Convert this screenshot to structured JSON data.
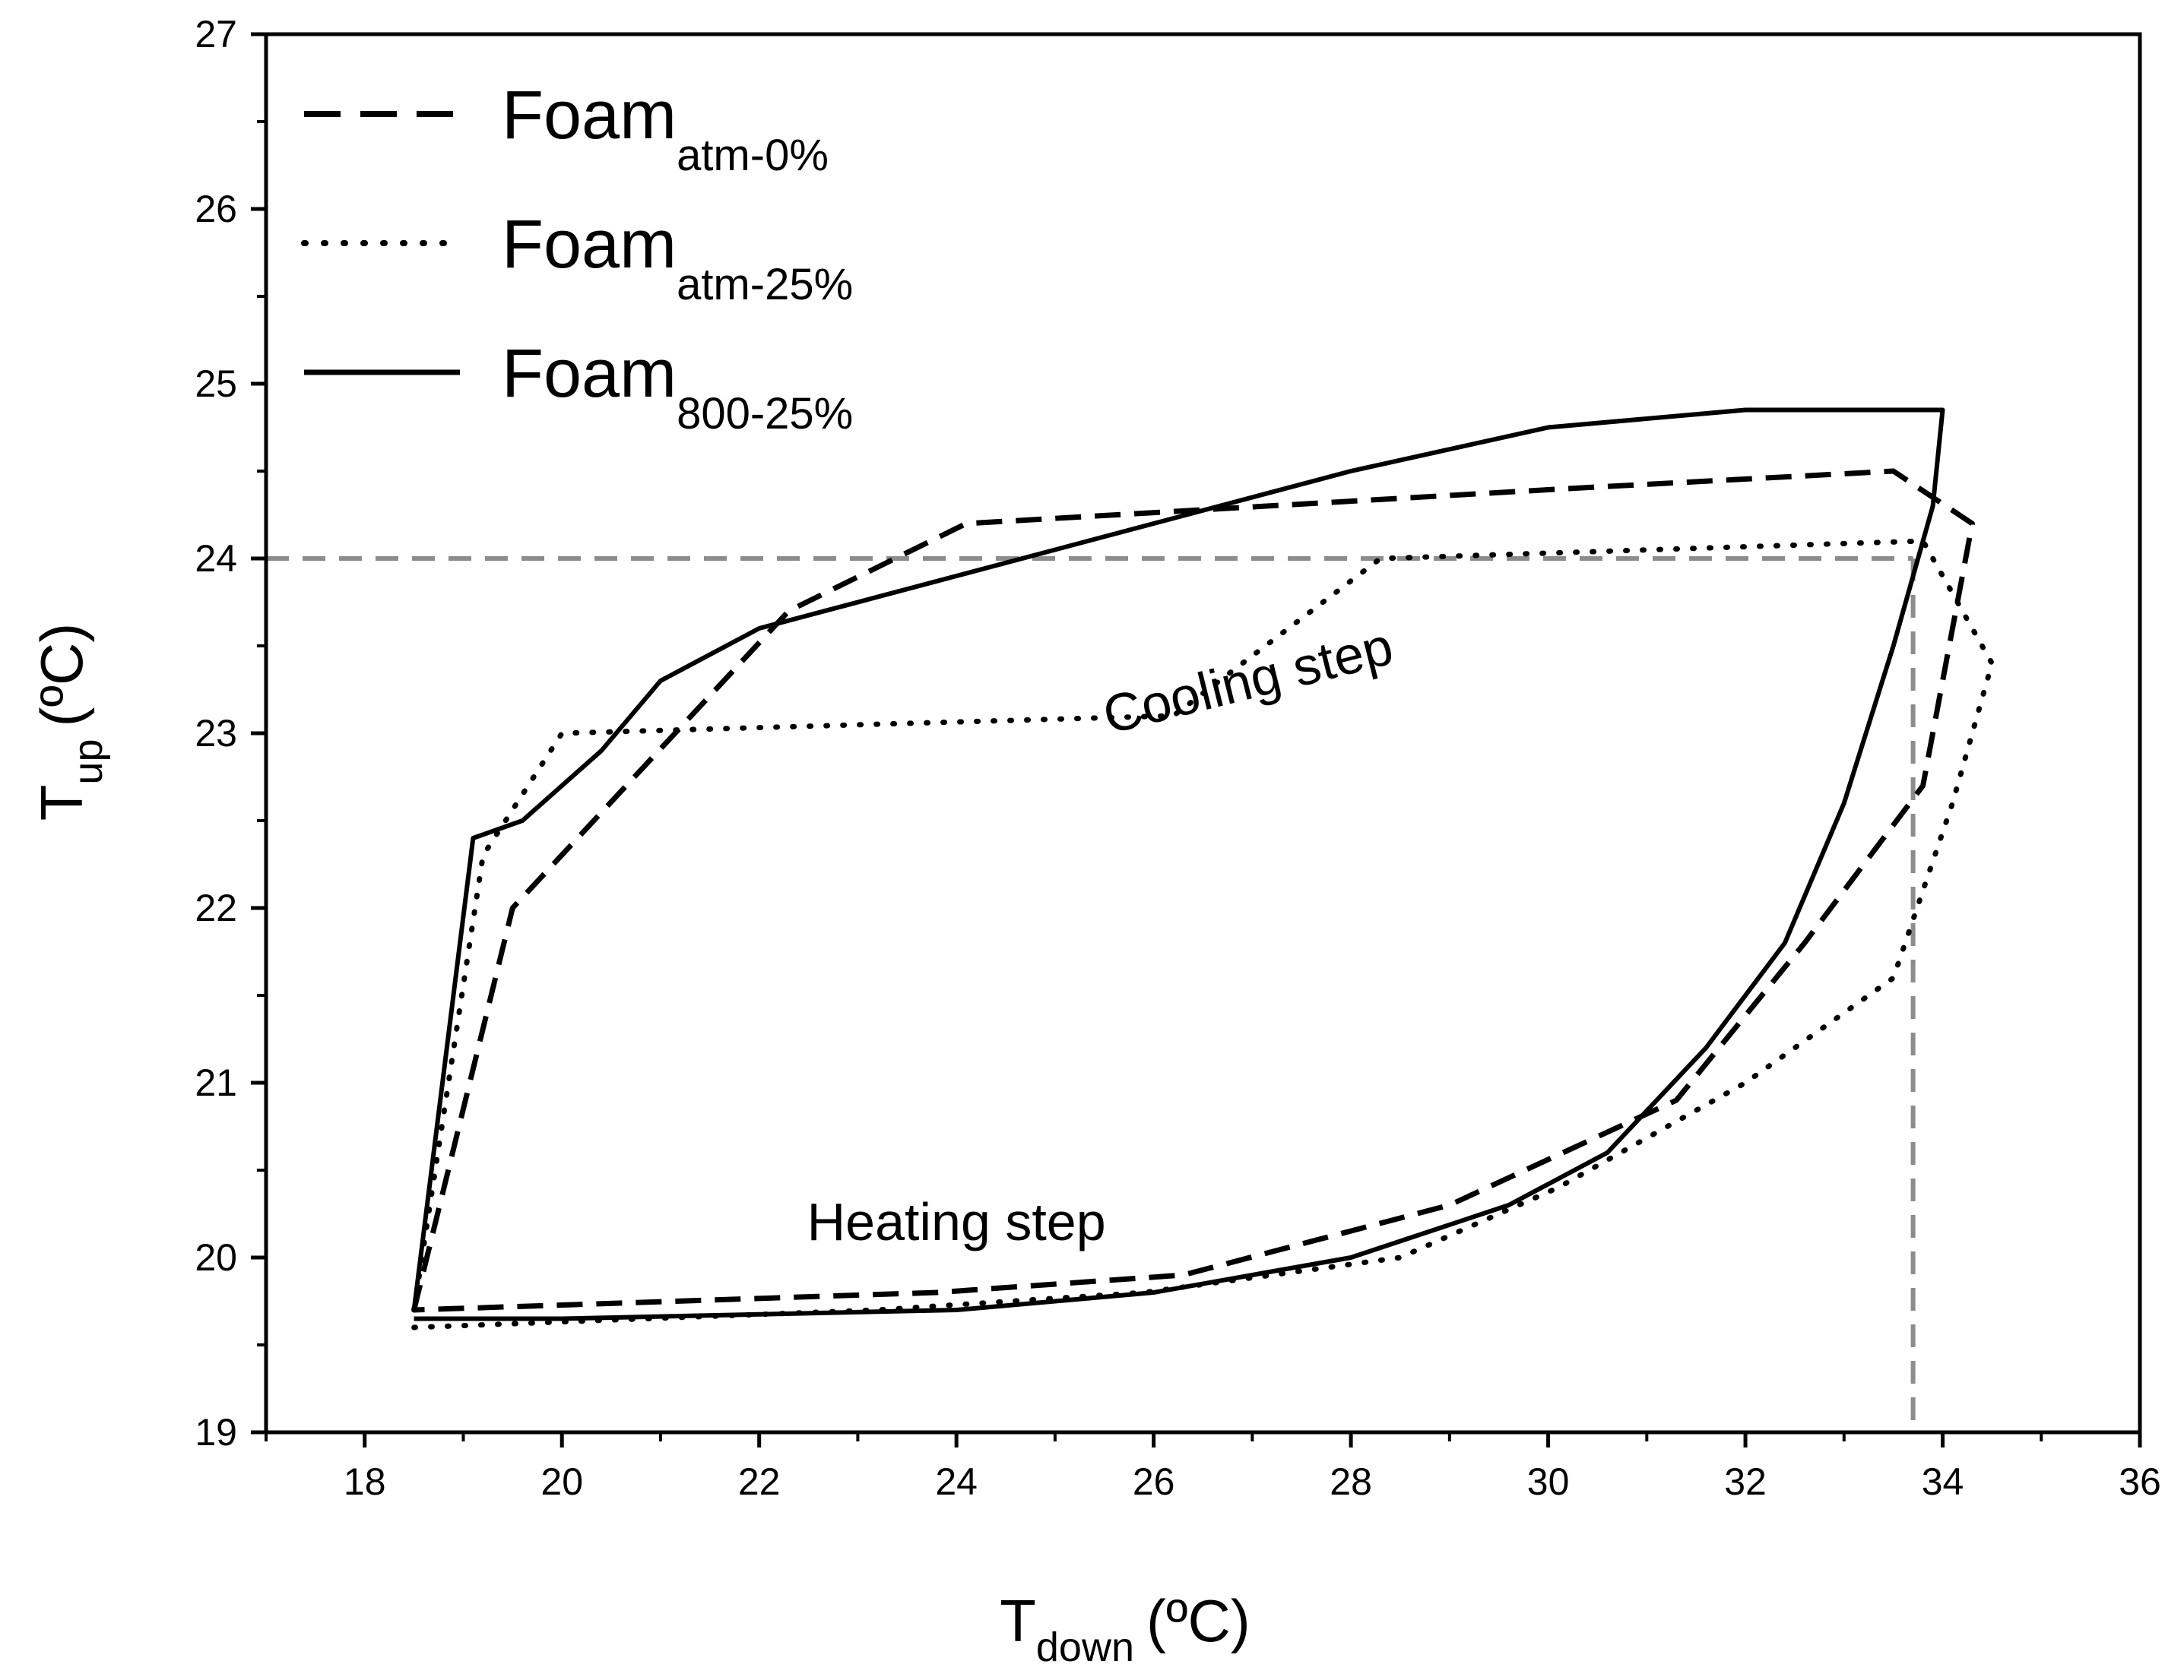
{
  "chart_data": {
    "type": "line",
    "xlabel": {
      "main": "T",
      "sub": "down",
      "unit": "(ºC)"
    },
    "ylabel": {
      "main": "T",
      "sub": "up",
      "unit": "(ºC)"
    },
    "xlim": [
      17,
      36
    ],
    "ylim": [
      19,
      27
    ],
    "xticks": [
      18,
      20,
      22,
      24,
      26,
      28,
      30,
      32,
      34,
      36
    ],
    "yticks": [
      19,
      20,
      21,
      22,
      23,
      24,
      25,
      26,
      27
    ],
    "grid": false,
    "legend_position": "top-left",
    "series": [
      {
        "name": "Foam",
        "sub": "atm-0%",
        "style": "dashed",
        "color": "#000000",
        "points": [
          [
            18.5,
            19.7
          ],
          [
            19.5,
            22.0
          ],
          [
            22.3,
            23.7
          ],
          [
            24.1,
            24.2
          ],
          [
            30.2,
            24.4
          ],
          [
            33.5,
            24.5
          ],
          [
            34.3,
            24.2
          ],
          [
            33.8,
            22.7
          ],
          [
            32.6,
            21.8
          ],
          [
            31.3,
            20.9
          ],
          [
            29.0,
            20.3
          ],
          [
            26.3,
            19.9
          ],
          [
            23.8,
            19.8
          ],
          [
            18.5,
            19.7
          ]
        ]
      },
      {
        "name": "Foam",
        "sub": "atm-25%",
        "style": "dotted",
        "color": "#000000",
        "points": [
          [
            18.5,
            19.7
          ],
          [
            19.2,
            22.3
          ],
          [
            20.0,
            23.0
          ],
          [
            26.2,
            23.1
          ],
          [
            28.3,
            24.0
          ],
          [
            33.8,
            24.1
          ],
          [
            34.5,
            23.4
          ],
          [
            34.1,
            22.6
          ],
          [
            33.5,
            21.6
          ],
          [
            32.0,
            21.0
          ],
          [
            30.1,
            20.4
          ],
          [
            28.5,
            20.0
          ],
          [
            25.9,
            19.8
          ],
          [
            23.2,
            19.7
          ],
          [
            18.5,
            19.6
          ]
        ]
      },
      {
        "name": "Foam",
        "sub": "800-25%",
        "style": "solid",
        "color": "#000000",
        "points": [
          [
            18.5,
            19.7
          ],
          [
            19.1,
            22.4
          ],
          [
            19.6,
            22.5
          ],
          [
            20.4,
            22.9
          ],
          [
            21.0,
            23.3
          ],
          [
            22.0,
            23.6
          ],
          [
            24.0,
            23.9
          ],
          [
            26.0,
            24.2
          ],
          [
            28.0,
            24.5
          ],
          [
            30.0,
            24.75
          ],
          [
            32.0,
            24.85
          ],
          [
            34.0,
            24.85
          ],
          [
            33.9,
            24.3
          ],
          [
            33.5,
            23.5
          ],
          [
            33.0,
            22.6
          ],
          [
            32.4,
            21.8
          ],
          [
            31.6,
            21.2
          ],
          [
            30.6,
            20.6
          ],
          [
            29.6,
            20.3
          ],
          [
            28.0,
            20.0
          ],
          [
            26.0,
            19.8
          ],
          [
            24.0,
            19.7
          ],
          [
            20.0,
            19.65
          ],
          [
            18.5,
            19.65
          ]
        ]
      }
    ],
    "reference_lines": {
      "color": "#8c8c8c",
      "horizontal_y": 24,
      "vertical_x": 33.7
    },
    "annotations": [
      {
        "text": "Cooling step",
        "x": 27.0,
        "y": 23.2,
        "rotation": -14
      },
      {
        "text": "Heating step",
        "x": 24.0,
        "y": 20.1,
        "rotation": 0
      }
    ]
  }
}
